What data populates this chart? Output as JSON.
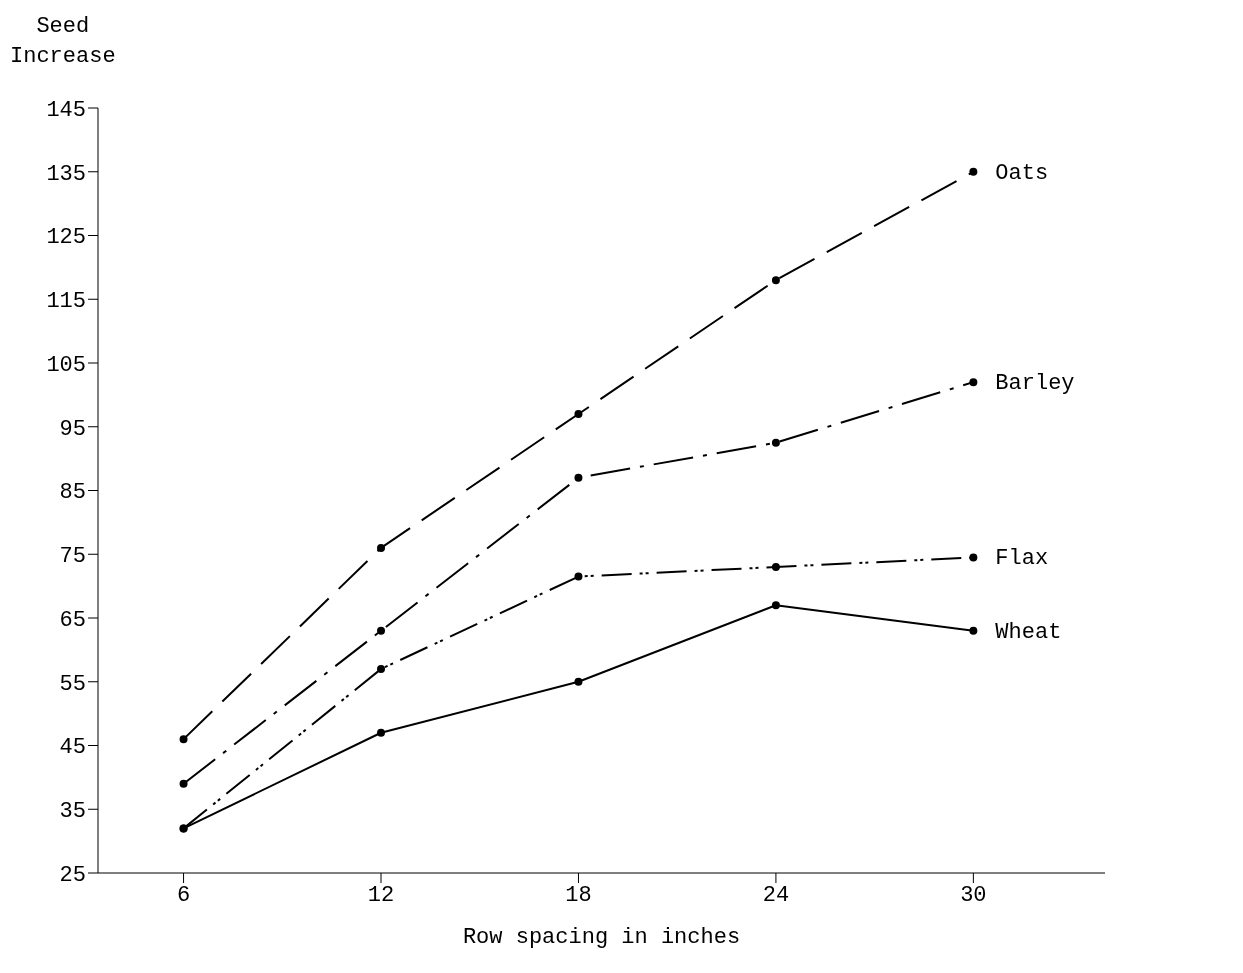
{
  "chart_data": {
    "type": "line",
    "ylabel": "Seed\nIncrease",
    "xlabel": "Row spacing in inches",
    "x": [
      6,
      12,
      18,
      24,
      30
    ],
    "series": [
      {
        "name": "Oats",
        "color": "#000000",
        "line_style": "dashed",
        "values": [
          46,
          76,
          97,
          118,
          135
        ]
      },
      {
        "name": "Barley",
        "color": "#000000",
        "line_style": "dashdot",
        "values": [
          39,
          63,
          87,
          92.5,
          102
        ]
      },
      {
        "name": "Flax",
        "color": "#000000",
        "line_style": "dotted",
        "values": [
          32,
          57,
          71.5,
          73,
          74.5
        ]
      },
      {
        "name": "Wheat",
        "color": "#000000",
        "line_style": "solid",
        "values": [
          32,
          47,
          55,
          67,
          63
        ]
      }
    ],
    "xlim": [
      3.4,
      34
    ],
    "xticks": [
      6,
      12,
      18,
      24,
      30
    ],
    "ylim": [
      25,
      145
    ],
    "yticks": [
      25,
      35,
      45,
      55,
      65,
      75,
      85,
      95,
      105,
      115,
      125,
      135,
      145
    ],
    "marker": "circle",
    "grid": false
  }
}
